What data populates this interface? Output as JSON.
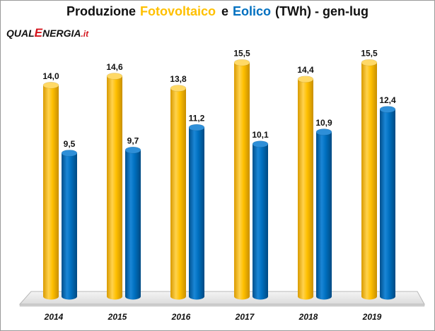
{
  "logo": {
    "prefix": "QUAL",
    "highlight": "E",
    "rest": "NERGIA",
    "suffix": ".it"
  },
  "chart_data": {
    "type": "bar",
    "title_parts": [
      "Produzione",
      "Fotovoltaico",
      "e",
      "Eolico",
      "(TWh) - gen-lug"
    ],
    "categories": [
      "2014",
      "2015",
      "2016",
      "2017",
      "2018",
      "2019"
    ],
    "series": [
      {
        "name": "Fotovoltaico",
        "values": [
          14.0,
          14.6,
          13.8,
          15.5,
          14.4,
          15.5
        ],
        "labels": [
          "14,0",
          "14,6",
          "13,8",
          "15,5",
          "14,4",
          "15,5"
        ],
        "color": "#ffc000"
      },
      {
        "name": "Eolico",
        "values": [
          9.5,
          9.7,
          11.2,
          10.1,
          10.9,
          12.4
        ],
        "labels": [
          "9,5",
          "9,7",
          "11,2",
          "10,1",
          "10,9",
          "12,4"
        ],
        "color": "#0070c0"
      }
    ],
    "ylim": [
      0,
      16
    ],
    "xlabel": "",
    "ylabel": "",
    "grid": false,
    "legend": "none",
    "style": "3d-cylinder"
  }
}
